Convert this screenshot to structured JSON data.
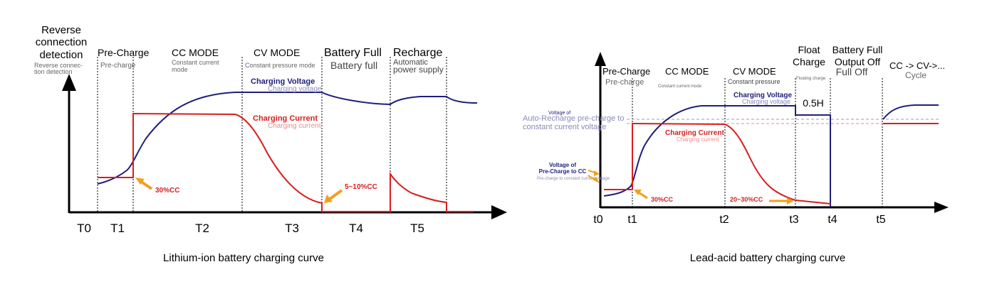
{
  "colors": {
    "axis": "#000000",
    "voltage": "#1f1f7a",
    "voltage_light": "#8a8ab8",
    "current": "#d81e1e",
    "current_light": "#ee8a8a",
    "arrow": "#f0a020",
    "dashed": "#9a9ac8"
  },
  "left": {
    "caption": "Lithium-ion battery charging curve",
    "phases": [
      {
        "title": "Reverse",
        "title2": "connection",
        "title3": "detection",
        "sub": "Reverse connec-",
        "sub2": "tion detection"
      },
      {
        "title": "Pre-Charge",
        "sub": "Pre-charge"
      },
      {
        "title": "CC MODE",
        "sub": "Constant current",
        "sub2": "mode"
      },
      {
        "title": "CV MODE",
        "sub": "Constant pressure mode"
      },
      {
        "title": "Battery Full",
        "sub": "Battery full"
      },
      {
        "title": "Recharge",
        "sub": "Automatic",
        "sub2": "power supply"
      }
    ],
    "time_labels": [
      "T0",
      "T1",
      "T2",
      "T3",
      "T4",
      "T5"
    ],
    "voltage_label": "Charging Voltage",
    "voltage_sub": "Charging voltage",
    "current_label": "Charging Current",
    "current_sub": "Charging current",
    "ann_30cc": "30%CC",
    "ann_5_10cc": "5~10%CC"
  },
  "right": {
    "caption": "Lead-acid battery charging curve",
    "phases": [
      {
        "title": "Pre-Charge",
        "sub": "Pre-charge"
      },
      {
        "title": "CC MODE",
        "sub": "Constant current mode"
      },
      {
        "title": "CV MODE",
        "sub": "Constant pressure"
      },
      {
        "title": "Float",
        "title2": "Charge",
        "sub": "Floating charge"
      },
      {
        "title": "Battery Full",
        "title2": "Output Off",
        "sub": "Full Off"
      },
      {
        "title": "CC -> CV->...",
        "sub": "Cycle"
      }
    ],
    "time_labels": [
      "t0",
      "t1",
      "t2",
      "t3",
      "t4",
      "t5"
    ],
    "voltage_label": "Charging Voltage",
    "voltage_sub": "Charging voltage",
    "current_label": "Charging Current",
    "current_sub": "Charging current",
    "float_time": "0.5H",
    "recharge_label": "Voltage of",
    "recharge_sub": "Auto-Recharge pre-charge to",
    "recharge_sub2": "constant current voltage",
    "precharge_label": "Voltage of",
    "precharge_label2": "Pre-Charge to CC",
    "precharge_sub": "Pre-charge to constant current voltage",
    "ann_30cc": "30%CC",
    "ann_20_30cc": "20~30%CC"
  }
}
